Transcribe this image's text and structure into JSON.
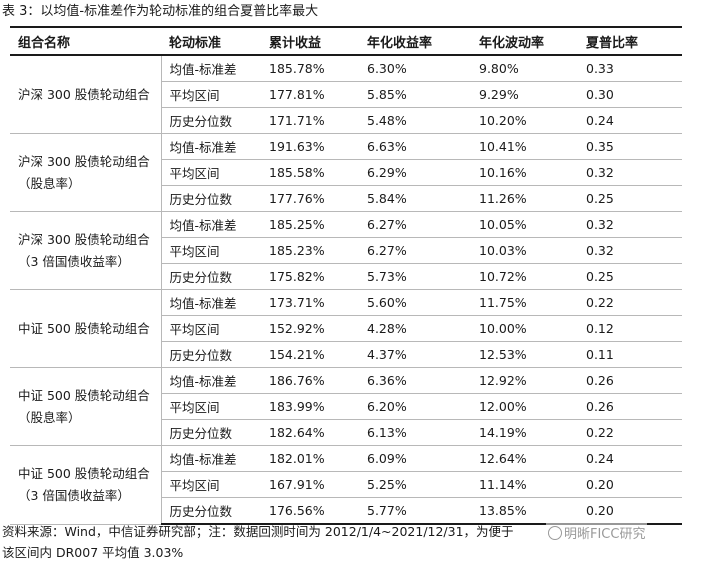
{
  "caption": "表 3：以均值-标准差作为轮动标准的组合夏普比率最大",
  "table": {
    "headers": [
      "组合名称",
      "轮动标准",
      "累计收益",
      "年化收益率",
      "年化波动率",
      "夏普比率"
    ],
    "groups": [
      {
        "name": "沪深 300 股债轮动组合",
        "rows": [
          [
            "均值-标准差",
            "185.78%",
            "6.30%",
            "9.80%",
            "0.33"
          ],
          [
            "平均区间",
            "177.81%",
            "5.85%",
            "9.29%",
            "0.30"
          ],
          [
            "历史分位数",
            "171.71%",
            "5.48%",
            "10.20%",
            "0.24"
          ]
        ]
      },
      {
        "name": "沪深 300 股债轮动组合（股息率）",
        "rows": [
          [
            "均值-标准差",
            "191.63%",
            "6.63%",
            "10.41%",
            "0.35"
          ],
          [
            "平均区间",
            "185.58%",
            "6.29%",
            "10.16%",
            "0.32"
          ],
          [
            "历史分位数",
            "177.76%",
            "5.84%",
            "11.26%",
            "0.25"
          ]
        ]
      },
      {
        "name": "沪深 300 股债轮动组合（3 倍国债收益率）",
        "rows": [
          [
            "均值-标准差",
            "185.25%",
            "6.27%",
            "10.05%",
            "0.32"
          ],
          [
            "平均区间",
            "185.23%",
            "6.27%",
            "10.03%",
            "0.32"
          ],
          [
            "历史分位数",
            "175.82%",
            "5.73%",
            "10.72%",
            "0.25"
          ]
        ]
      },
      {
        "name": "中证 500 股债轮动组合",
        "rows": [
          [
            "均值-标准差",
            "173.71%",
            "5.60%",
            "11.75%",
            "0.22"
          ],
          [
            "平均区间",
            "152.92%",
            "4.28%",
            "10.00%",
            "0.12"
          ],
          [
            "历史分位数",
            "154.21%",
            "4.37%",
            "12.53%",
            "0.11"
          ]
        ]
      },
      {
        "name": "中证 500 股债轮动组合（股息率）",
        "rows": [
          [
            "均值-标准差",
            "186.76%",
            "6.36%",
            "12.92%",
            "0.26"
          ],
          [
            "平均区间",
            "183.99%",
            "6.20%",
            "12.00%",
            "0.26"
          ],
          [
            "历史分位数",
            "182.64%",
            "6.13%",
            "14.19%",
            "0.22"
          ]
        ]
      },
      {
        "name": "中证 500 股债轮动组合（3 倍国债收益率）",
        "rows": [
          [
            "均值-标准差",
            "182.01%",
            "6.09%",
            "12.64%",
            "0.24"
          ],
          [
            "平均区间",
            "167.91%",
            "5.25%",
            "11.14%",
            "0.20"
          ],
          [
            "历史分位数",
            "176.56%",
            "5.77%",
            "13.85%",
            "0.20"
          ]
        ]
      }
    ]
  },
  "footnote": {
    "line1": "资料来源：Wind，中信证券研究部；注：数据回测时间为 2012/1/4~2021/12/31，为便于",
    "line2": "该区间内 DR007 平均值 3.03%"
  },
  "watermark": "明晰FICC研究"
}
